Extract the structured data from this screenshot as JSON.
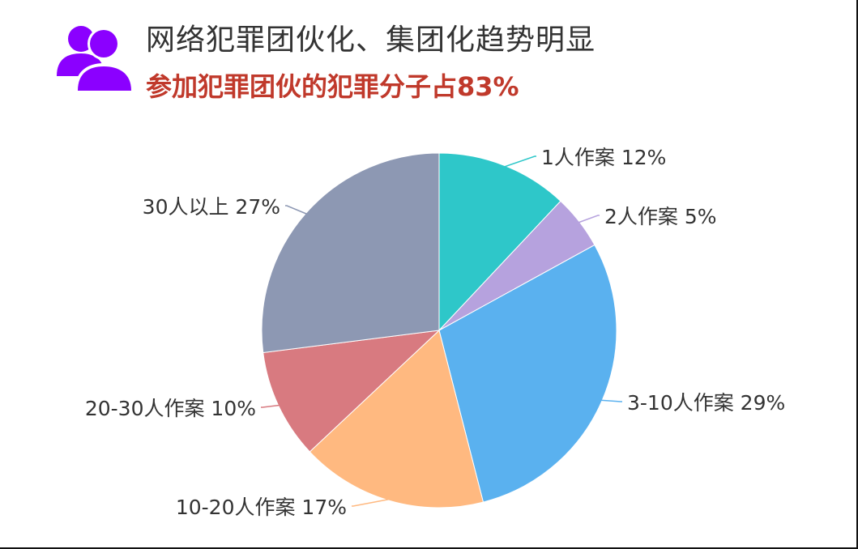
{
  "header": {
    "title": "网络犯罪团伙化、集团化趋势明显",
    "subtitle": "参加犯罪团伙的犯罪分子占83%",
    "icon": "users-icon",
    "icon_color": "#8b00ff",
    "subtitle_color": "#c0392b"
  },
  "chart_data": {
    "type": "pie",
    "slices": [
      {
        "label": "1人作案",
        "value": 12,
        "display": "1人作案  12%",
        "color": "#2ec7c9"
      },
      {
        "label": "2人作案",
        "value": 5,
        "display": "2人作案  5%",
        "color": "#b6a2de"
      },
      {
        "label": "3-10人作案",
        "value": 29,
        "display": "3-10人作案  29%",
        "color": "#5ab1ef"
      },
      {
        "label": "10-20人作案",
        "value": 17,
        "display": "10-20人作案  17%",
        "color": "#ffb980"
      },
      {
        "label": "20-30人作案",
        "value": 10,
        "display": "20-30人作案  10%",
        "color": "#d87a80"
      },
      {
        "label": "30人以上",
        "value": 27,
        "display": "30人以上  27%",
        "color": "#8d98b3"
      }
    ]
  }
}
